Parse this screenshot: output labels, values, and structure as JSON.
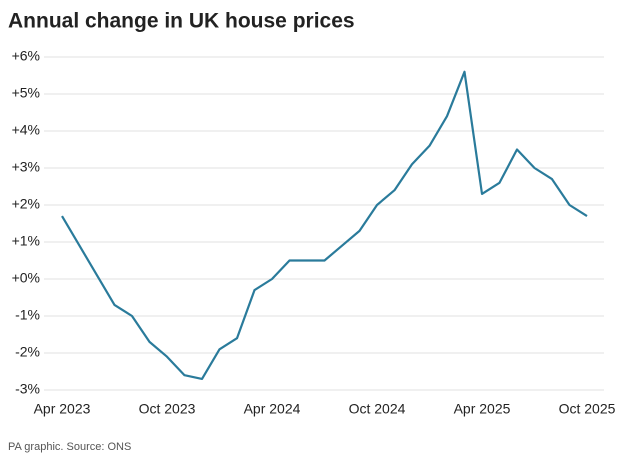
{
  "chart_data": {
    "type": "line",
    "title": "Annual change in UK house prices",
    "source": "PA graphic. Source: ONS",
    "categories": [
      "Apr 2023",
      null,
      null,
      null,
      null,
      null,
      "Oct 2023",
      null,
      null,
      null,
      null,
      null,
      "Apr 2024",
      null,
      null,
      null,
      null,
      null,
      "Oct 2024",
      null,
      null,
      null,
      null,
      null,
      "Apr 2025",
      null,
      null,
      null,
      null,
      null,
      "Oct 2025"
    ],
    "series": [
      {
        "name": "Annual change",
        "color": "#2a7b9b",
        "values": [
          1.7,
          0.9,
          0.1,
          -0.7,
          -1.0,
          -1.7,
          -2.1,
          -2.6,
          -2.7,
          -1.9,
          -1.6,
          -0.3,
          0.0,
          0.5,
          0.5,
          0.5,
          0.9,
          1.3,
          2.0,
          2.4,
          3.1,
          3.6,
          4.4,
          5.6,
          2.3,
          2.6,
          3.5,
          3.0,
          2.7,
          2.0,
          1.7
        ]
      }
    ],
    "ylim": [
      -3,
      6
    ],
    "yticks": [
      {
        "value": -3,
        "label": "-3%"
      },
      {
        "value": -2,
        "label": "-2%"
      },
      {
        "value": -1,
        "label": "-1%"
      },
      {
        "value": 0,
        "label": "+0%"
      },
      {
        "value": 1,
        "label": "+1%"
      },
      {
        "value": 2,
        "label": "+2%"
      },
      {
        "value": 3,
        "label": "+3%"
      },
      {
        "value": 4,
        "label": "+4%"
      },
      {
        "value": 5,
        "label": "+5%"
      },
      {
        "value": 6,
        "label": "+6%"
      }
    ],
    "grid": true
  }
}
